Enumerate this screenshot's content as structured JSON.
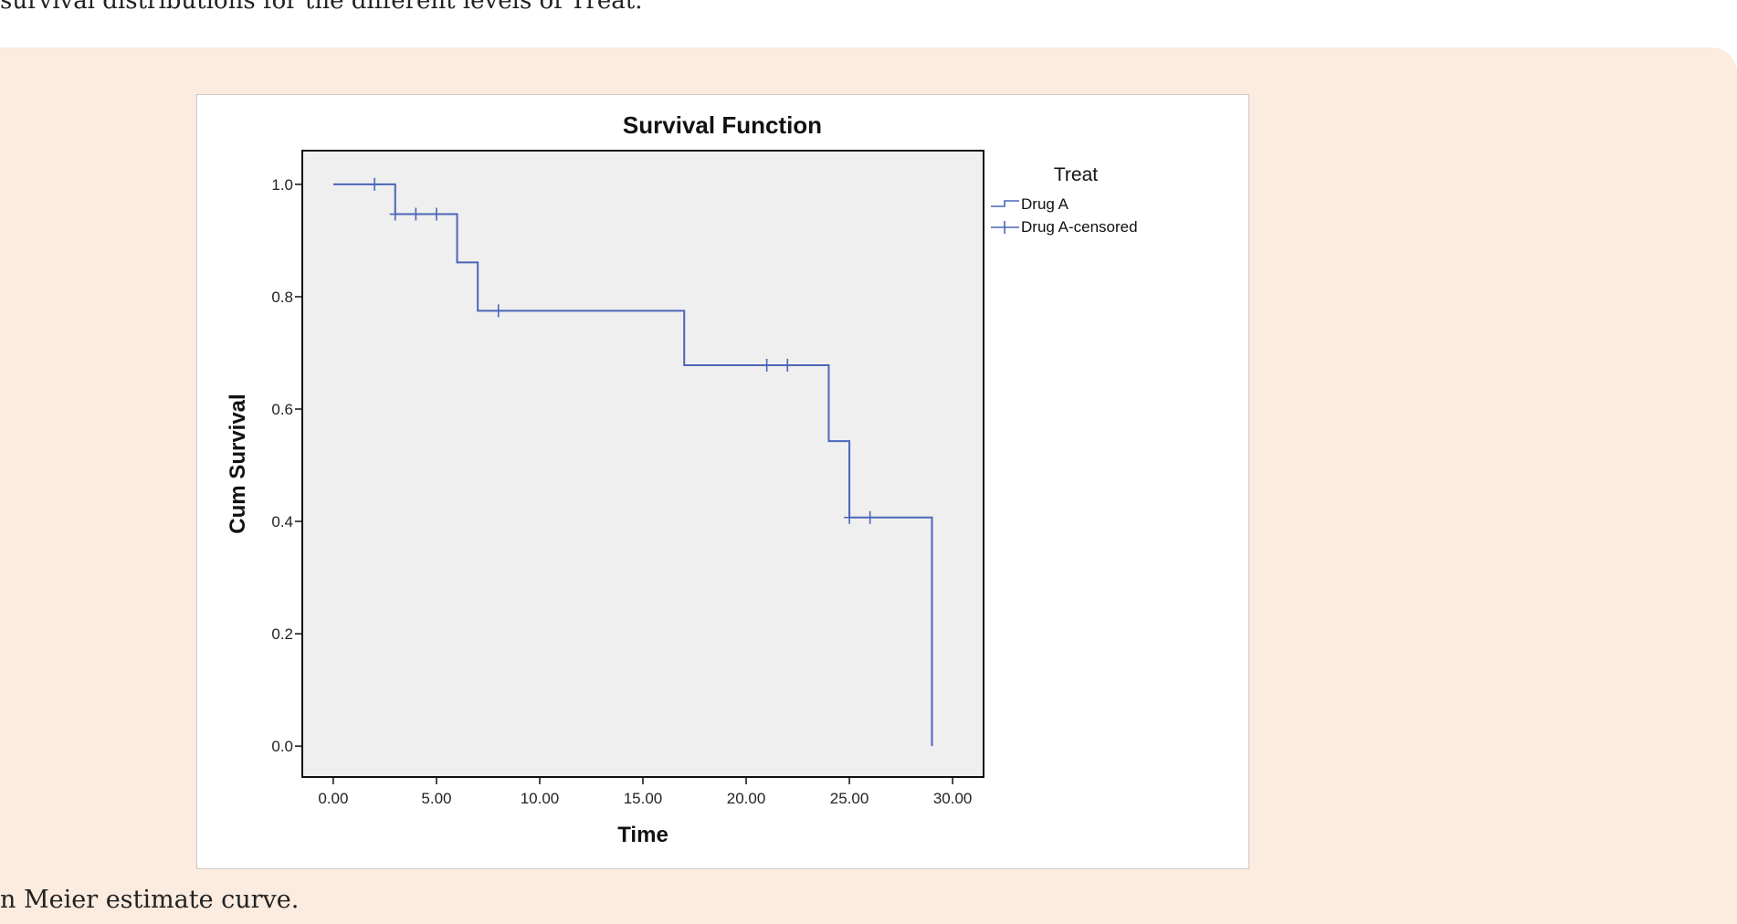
{
  "page": {
    "top_text": "survival distributions for the different levels of Treat.",
    "caption": "n Meier estimate curve."
  },
  "colors": {
    "panel_background": "#fcebdf",
    "plot_background": "#efefef",
    "series_line": "#4a66b8"
  },
  "chart_data": {
    "type": "line",
    "subtype": "kaplan-meier step",
    "title": "Survival Function",
    "xlabel": "Time",
    "ylabel": "Cum Survival",
    "xlim": [
      -1.5,
      31.5
    ],
    "ylim": [
      -0.055,
      1.06
    ],
    "x_ticks": [
      0,
      5,
      10,
      15,
      20,
      25,
      30
    ],
    "x_tick_labels": [
      "0.00",
      "5.00",
      "10.00",
      "15.00",
      "20.00",
      "25.00",
      "30.00"
    ],
    "y_ticks": [
      0,
      0.2,
      0.4,
      0.6,
      0.8,
      1.0
    ],
    "y_tick_labels": [
      "0.0",
      "0.2",
      "0.4",
      "0.6",
      "0.8",
      "1.0"
    ],
    "grid": false,
    "legend": {
      "title": "Treat",
      "position": "right",
      "entries": [
        "Drug A",
        "Drug A-censored"
      ]
    },
    "series": [
      {
        "name": "Drug A",
        "steps": [
          {
            "x": 0,
            "y": 1.0
          },
          {
            "x": 3,
            "y": 0.947
          },
          {
            "x": 6,
            "y": 0.861
          },
          {
            "x": 7,
            "y": 0.775
          },
          {
            "x": 17,
            "y": 0.678
          },
          {
            "x": 24,
            "y": 0.543
          },
          {
            "x": 25,
            "y": 0.407
          },
          {
            "x": 29,
            "y": 0.0
          }
        ]
      },
      {
        "name": "Drug A-censored",
        "points": [
          {
            "x": 2,
            "y": 1.0
          },
          {
            "x": 3,
            "y": 0.947
          },
          {
            "x": 4,
            "y": 0.947
          },
          {
            "x": 5,
            "y": 0.947
          },
          {
            "x": 8,
            "y": 0.775
          },
          {
            "x": 21,
            "y": 0.678
          },
          {
            "x": 22,
            "y": 0.678
          },
          {
            "x": 25,
            "y": 0.407
          },
          {
            "x": 26,
            "y": 0.407
          }
        ]
      }
    ]
  }
}
